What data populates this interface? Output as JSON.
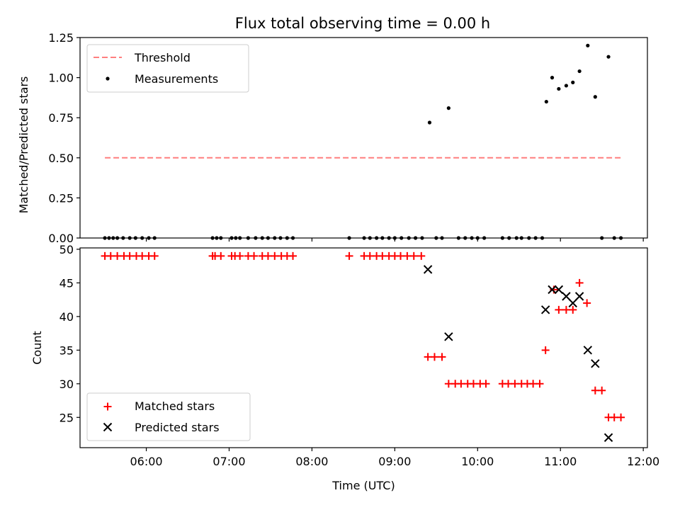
{
  "title": "Flux total observing time = 0.00 h",
  "chart_data": [
    {
      "type": "scatter",
      "ylabel": "Matched/Predicted stars",
      "xlim": [
        5.2,
        12.05
      ],
      "ylim": [
        0,
        1.25
      ],
      "yticks": [
        "0.00",
        "0.25",
        "0.50",
        "0.75",
        "1.00",
        "1.25"
      ],
      "legend": {
        "position": "top-left",
        "entries": [
          "Threshold",
          "Measurements"
        ]
      },
      "threshold": {
        "name": "Threshold",
        "y": 0.5,
        "x": [
          5.5,
          11.73
        ],
        "color": "#ff7f7f"
      },
      "series": [
        {
          "name": "Measurements",
          "color": "#000000",
          "x": [
            5.5,
            5.55,
            5.6,
            5.65,
            5.72,
            5.8,
            5.87,
            5.95,
            6.03,
            6.1,
            6.8,
            6.85,
            6.9,
            7.03,
            7.08,
            7.13,
            7.23,
            7.32,
            7.4,
            7.47,
            7.55,
            7.62,
            7.7,
            7.77,
            8.45,
            8.63,
            8.7,
            8.78,
            8.85,
            8.93,
            9.0,
            9.08,
            9.17,
            9.25,
            9.33,
            9.5,
            9.57,
            9.77,
            9.85,
            9.93,
            10.0,
            10.08,
            10.3,
            10.38,
            10.47,
            10.53,
            10.62,
            10.7,
            10.78,
            9.42,
            9.65,
            10.83,
            10.9,
            10.98,
            11.07,
            11.15,
            11.23,
            11.33,
            11.42,
            11.58,
            11.5,
            11.65,
            11.73
          ],
          "y": [
            0,
            0,
            0,
            0,
            0,
            0,
            0,
            0,
            0,
            0,
            0,
            0,
            0,
            0,
            0,
            0,
            0,
            0,
            0,
            0,
            0,
            0,
            0,
            0,
            0,
            0,
            0,
            0,
            0,
            0,
            0,
            0,
            0,
            0,
            0,
            0,
            0,
            0,
            0,
            0,
            0,
            0,
            0,
            0,
            0,
            0,
            0,
            0,
            0,
            0.72,
            0.81,
            0.85,
            1.0,
            0.93,
            0.95,
            0.97,
            1.04,
            1.2,
            0.88,
            1.13,
            0,
            0,
            0
          ]
        }
      ]
    },
    {
      "type": "scatter",
      "xlabel": "Time (UTC)",
      "ylabel": "Count",
      "xlim": [
        5.2,
        12.05
      ],
      "ylim": [
        20.5,
        50.2
      ],
      "xticks": [
        {
          "v": 6,
          "label": "06:00"
        },
        {
          "v": 7,
          "label": "07:00"
        },
        {
          "v": 8,
          "label": "08:00"
        },
        {
          "v": 9,
          "label": "09:00"
        },
        {
          "v": 10,
          "label": "10:00"
        },
        {
          "v": 11,
          "label": "11:00"
        },
        {
          "v": 12,
          "label": "12:00"
        }
      ],
      "yticks": [
        25,
        30,
        35,
        40,
        45,
        50
      ],
      "legend": {
        "position": "bottom-left",
        "entries": [
          "Matched stars",
          "Predicted stars"
        ]
      },
      "series": [
        {
          "name": "Matched stars",
          "marker": "plus",
          "color": "#ff0000",
          "x": [
            5.5,
            5.57,
            5.65,
            5.73,
            5.8,
            5.88,
            5.95,
            6.03,
            6.1,
            6.8,
            6.83,
            6.9,
            7.03,
            7.07,
            7.13,
            7.23,
            7.3,
            7.4,
            7.47,
            7.55,
            7.63,
            7.7,
            7.77,
            8.45,
            8.63,
            8.7,
            8.78,
            8.85,
            8.93,
            9.0,
            9.07,
            9.15,
            9.23,
            9.32,
            9.4,
            9.48,
            9.57,
            9.65,
            9.73,
            9.8,
            9.88,
            9.95,
            10.03,
            10.1,
            10.3,
            10.37,
            10.45,
            10.53,
            10.6,
            10.67,
            10.75,
            10.82,
            10.92,
            10.98,
            11.07,
            11.15,
            11.23,
            11.32,
            11.42,
            11.5,
            11.58,
            11.65,
            11.73
          ],
          "y": [
            49,
            49,
            49,
            49,
            49,
            49,
            49,
            49,
            49,
            49,
            49,
            49,
            49,
            49,
            49,
            49,
            49,
            49,
            49,
            49,
            49,
            49,
            49,
            49,
            49,
            49,
            49,
            49,
            49,
            49,
            49,
            49,
            49,
            49,
            34,
            34,
            34,
            30,
            30,
            30,
            30,
            30,
            30,
            30,
            30,
            30,
            30,
            30,
            30,
            30,
            30,
            35,
            44,
            41,
            41,
            41,
            45,
            42,
            29,
            29,
            25,
            25,
            25
          ]
        },
        {
          "name": "Predicted stars",
          "marker": "x",
          "color": "#000000",
          "x": [
            9.4,
            9.65,
            10.82,
            10.9,
            10.98,
            11.07,
            11.15,
            11.23,
            11.33,
            11.42,
            11.58
          ],
          "y": [
            47,
            37,
            41,
            44,
            44,
            43,
            42,
            43,
            35,
            33,
            22
          ]
        }
      ]
    }
  ]
}
